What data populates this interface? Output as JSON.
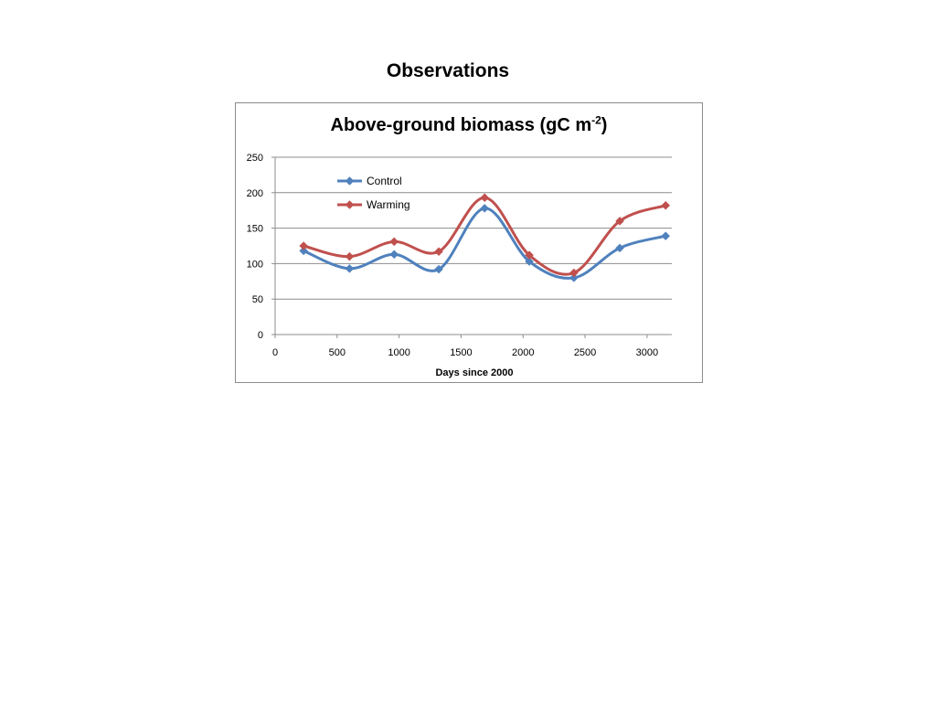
{
  "heading": "Observations",
  "chart_data": {
    "type": "line",
    "title_main": "Above-ground biomass (gC m",
    "title_sup": "-2",
    "title_close": ")",
    "xlabel": "Days since 2000",
    "ylabel": "",
    "xlim": [
      0,
      3200
    ],
    "ylim": [
      0,
      250
    ],
    "x_ticks": [
      0,
      500,
      1000,
      1500,
      2000,
      2500,
      3000
    ],
    "y_ticks": [
      0,
      50,
      100,
      150,
      200,
      250
    ],
    "grid": "horizontal",
    "legend_position": "top-left",
    "x": [
      230,
      600,
      960,
      1320,
      1690,
      2050,
      2410,
      2780,
      3150
    ],
    "series": [
      {
        "name": "Control",
        "color": "#4f81bd",
        "marker": "diamond",
        "values": [
          118,
          93,
          113,
          92,
          178,
          103,
          80,
          122,
          139
        ]
      },
      {
        "name": "Warming",
        "color": "#c0504d",
        "marker": "diamond",
        "values": [
          125,
          110,
          131,
          117,
          193,
          112,
          87,
          160,
          182
        ]
      }
    ]
  }
}
